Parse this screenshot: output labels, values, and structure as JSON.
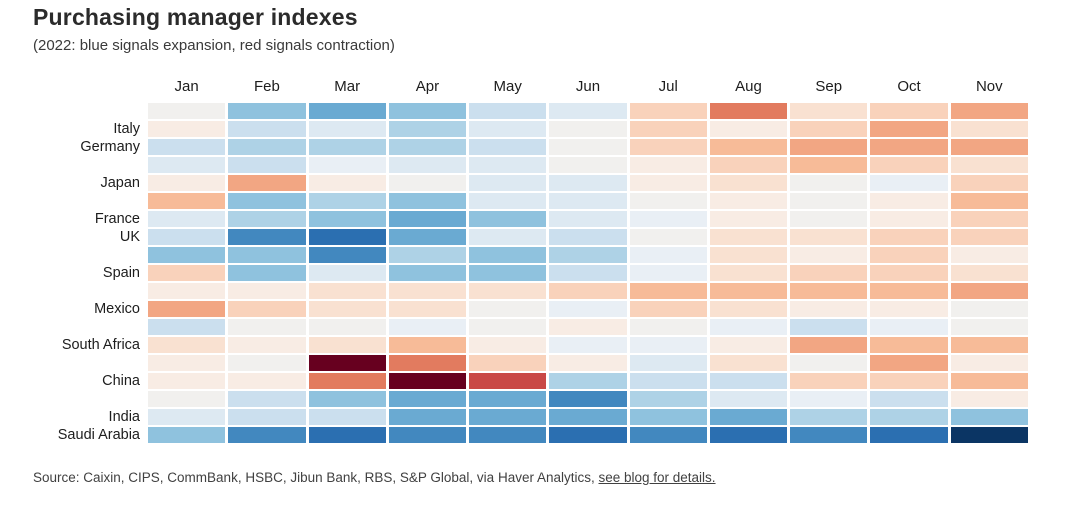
{
  "header": {
    "title": "Purchasing manager indexes",
    "subtitle": "(2022: blue signals expansion, red signals contraction)"
  },
  "source": {
    "prefix": "Source: Caixin, CIPS, CommBank, HSBC, Jibun Bank, RBS, S&P Global, via Haver Analytics, ",
    "link_text": "see blog for details."
  },
  "colors": {
    "strongest_contraction": "#67001f",
    "strongest_expansion": "#0b3564",
    "neutral": "#f1f0ee"
  },
  "chart_data": {
    "type": "heatmap",
    "title": "Purchasing manager indexes",
    "subtitle": "(2022: blue signals expansion, red signals contraction)",
    "x_labels": [
      "Jan",
      "Feb",
      "Mar",
      "Apr",
      "May",
      "Jun",
      "Jul",
      "Aug",
      "Sep",
      "Oct",
      "Nov"
    ],
    "legend_note": "Color scale is diverging: palette index 0 = deepest contraction (dark red), 8 = neutral, 17 = strongest expansion (dark navy blue). No numeric values are printed on the chart.",
    "palette": [
      "#67001f",
      "#c94846",
      "#e27b5f",
      "#f2a683",
      "#f7bb98",
      "#f9d2bb",
      "#f9e1d1",
      "#f8ece4",
      "#f1f0ee",
      "#e9eff5",
      "#dde9f2",
      "#cbdfee",
      "#aed2e6",
      "#8fc2de",
      "#6aaad2",
      "#4288bf",
      "#2b6fb1",
      "#0b3564"
    ],
    "rows": [
      {
        "label": "",
        "levels": [
          8,
          13,
          14,
          13,
          11,
          10,
          5,
          2,
          6,
          5,
          3
        ]
      },
      {
        "label": "Italy",
        "levels": [
          7,
          11,
          10,
          12,
          10,
          8,
          5,
          7,
          5,
          3,
          6
        ]
      },
      {
        "label": "Germany",
        "levels": [
          11,
          12,
          12,
          12,
          11,
          8,
          5,
          4,
          3,
          3,
          3
        ]
      },
      {
        "label": "",
        "levels": [
          10,
          11,
          9,
          10,
          10,
          8,
          7,
          5,
          4,
          5,
          6
        ]
      },
      {
        "label": "Japan",
        "levels": [
          7,
          3,
          7,
          8,
          10,
          10,
          7,
          6,
          8,
          9,
          5
        ]
      },
      {
        "label": "",
        "levels": [
          4,
          13,
          12,
          13,
          10,
          10,
          8,
          7,
          8,
          7,
          4
        ]
      },
      {
        "label": "France",
        "levels": [
          10,
          12,
          13,
          14,
          13,
          10,
          9,
          7,
          8,
          7,
          5
        ]
      },
      {
        "label": "UK",
        "levels": [
          11,
          15,
          16,
          14,
          10,
          11,
          8,
          6,
          6,
          5,
          5
        ]
      },
      {
        "label": "",
        "levels": [
          13,
          13,
          15,
          12,
          13,
          12,
          9,
          6,
          7,
          5,
          7
        ]
      },
      {
        "label": "Spain",
        "levels": [
          5,
          13,
          10,
          13,
          13,
          11,
          9,
          6,
          5,
          5,
          6
        ]
      },
      {
        "label": "",
        "levels": [
          7,
          7,
          6,
          6,
          6,
          5,
          4,
          4,
          4,
          4,
          3
        ]
      },
      {
        "label": "Mexico",
        "levels": [
          3,
          5,
          6,
          6,
          8,
          9,
          5,
          6,
          7,
          7,
          8
        ]
      },
      {
        "label": "",
        "levels": [
          11,
          8,
          8,
          9,
          8,
          7,
          8,
          9,
          11,
          9,
          8
        ]
      },
      {
        "label": "South Africa",
        "levels": [
          6,
          7,
          6,
          4,
          7,
          9,
          9,
          7,
          3,
          4,
          4
        ]
      },
      {
        "label": "",
        "levels": [
          7,
          8,
          0,
          2,
          5,
          7,
          10,
          6,
          8,
          3,
          7
        ]
      },
      {
        "label": "China",
        "levels": [
          7,
          7,
          2,
          0,
          1,
          12,
          11,
          11,
          5,
          5,
          4
        ]
      },
      {
        "label": "",
        "levels": [
          8,
          11,
          13,
          14,
          14,
          15,
          12,
          10,
          9,
          11,
          7
        ]
      },
      {
        "label": "India",
        "levels": [
          10,
          11,
          11,
          14,
          14,
          14,
          13,
          14,
          12,
          12,
          13
        ]
      },
      {
        "label": "Saudi Arabia",
        "levels": [
          13,
          15,
          16,
          15,
          15,
          16,
          15,
          16,
          15,
          16,
          17
        ]
      }
    ]
  }
}
